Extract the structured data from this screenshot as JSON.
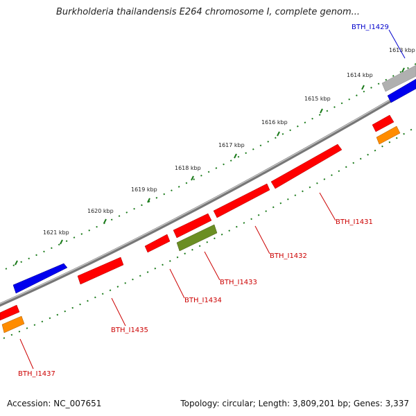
{
  "title": "Burkholderia thailandensis E264 chromosome I, complete genom...",
  "footer": {
    "accession": "Accession: NC_007651",
    "summary": "Topology: circular; Length: 3,809,201 bp; Genes: 3,337"
  },
  "colors": {
    "forward_cds": "#ff0000",
    "reverse_cds": "#ff0000",
    "highlight_gene": "#0000ee",
    "olive_gene": "#6b8e23",
    "orange_gene": "#ff8c00",
    "gray_gene": "#b0b0b0",
    "backbone": "#777777",
    "tick": "#1a7a1a",
    "label_red": "#cc0000",
    "label_blue": "#0000cc"
  },
  "kbp_ticks": [
    "1613 kbp",
    "1614 kbp",
    "1615 kbp",
    "1616 kbp",
    "1617 kbp",
    "1618 kbp",
    "1619 kbp",
    "1620 kbp",
    "1621 kbp"
  ],
  "gene_labels": [
    "BTH_I1429",
    "BTH_I1431",
    "BTH_I1432",
    "BTH_I1433",
    "BTH_I1434",
    "BTH_I1435",
    "BTH_I1437"
  ]
}
